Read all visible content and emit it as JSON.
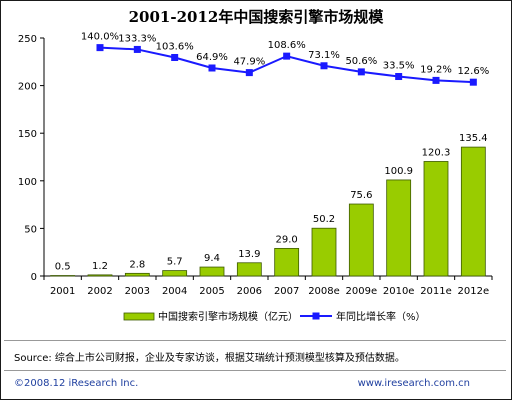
{
  "chart_data": {
    "type": "bar+line",
    "title": "2001-2012年中国搜索引擎市场规模",
    "categories": [
      "2001",
      "2002",
      "2003",
      "2004",
      "2005",
      "2006",
      "2007",
      "2008e",
      "2009e",
      "2010e",
      "2011e",
      "2012e"
    ],
    "bar_series": {
      "name": "中国搜索引擎市场规模（亿元）",
      "values": [
        0.5,
        1.2,
        2.8,
        5.7,
        9.4,
        13.9,
        29.0,
        50.2,
        75.6,
        100.9,
        120.3,
        135.4
      ],
      "labels": [
        "0.5",
        "1.2",
        "2.8",
        "5.7",
        "9.4",
        "13.9",
        "29.0",
        "50.2",
        "75.6",
        "100.9",
        "120.3",
        "135.4"
      ],
      "color": "#99cc00"
    },
    "line_series": {
      "name": "年同比增长率（%）",
      "values": [
        140.0,
        133.3,
        103.6,
        64.9,
        47.9,
        108.6,
        73.1,
        50.6,
        33.5,
        19.2,
        12.6
      ],
      "labels": [
        "140.0%",
        "133.3%",
        "103.6%",
        "64.9%",
        "47.9%",
        "108.6%",
        "73.1%",
        "50.6%",
        "33.5%",
        "19.2%",
        "12.6%"
      ],
      "start_index": 1,
      "color": "#1a1aff"
    },
    "y_axis": {
      "min": 0,
      "max": 250,
      "ticks": [
        0,
        50,
        100,
        150,
        200,
        250
      ]
    },
    "legend_position": "bottom"
  },
  "source": "Source: 综合上市公司财报，企业及专家访谈，根据艾瑞统计预测模型核算及预估数据。",
  "copyright": "©2008.12 iResearch Inc.",
  "website": "www.iresearch.com.cn"
}
